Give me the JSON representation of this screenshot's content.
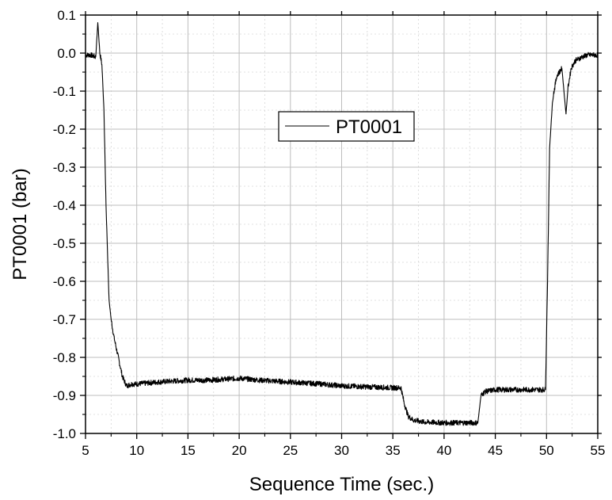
{
  "chart_data": {
    "type": "line",
    "xlabel": "Sequence Time (sec.)",
    "ylabel": "PT0001 (bar)",
    "xlim": [
      5,
      55
    ],
    "ylim": [
      -1.0,
      0.1
    ],
    "xticks": [
      5,
      10,
      15,
      20,
      25,
      30,
      35,
      40,
      45,
      50,
      55
    ],
    "yticks": [
      0.1,
      0.0,
      -0.1,
      -0.2,
      -0.3,
      -0.4,
      -0.5,
      -0.6,
      -0.7,
      -0.8,
      -0.9,
      -1.0
    ],
    "xtick_labels": [
      "5",
      "10",
      "15",
      "20",
      "25",
      "30",
      "35",
      "40",
      "45",
      "50",
      "55"
    ],
    "ytick_labels": [
      "0.1",
      "0.0",
      "-0.1",
      "-0.2",
      "-0.3",
      "-0.4",
      "-0.5",
      "-0.6",
      "-0.7",
      "-0.8",
      "-0.9",
      "-1.0"
    ],
    "grid": true,
    "legend_position": "top-center",
    "line_color": "#000000",
    "series": [
      {
        "name": "PT0001",
        "x": [
          5.0,
          5.5,
          6.0,
          6.2,
          6.4,
          6.6,
          6.8,
          7.0,
          7.3,
          7.5,
          7.8,
          8.2,
          8.6,
          9.0,
          9.5,
          10,
          12,
          15,
          17,
          20,
          22,
          25,
          28,
          30,
          33,
          35,
          35.8,
          36.1,
          36.5,
          37,
          38,
          40,
          42,
          43.3,
          43.6,
          44,
          45,
          47,
          49,
          49.9,
          50.1,
          50.3,
          50.6,
          51,
          51.5,
          51.9,
          52.1,
          52.4,
          52.8,
          53.5,
          54,
          55
        ],
        "y": [
          -0.005,
          -0.005,
          -0.01,
          0.08,
          0.0,
          -0.03,
          -0.15,
          -0.4,
          -0.65,
          -0.7,
          -0.75,
          -0.8,
          -0.85,
          -0.875,
          -0.87,
          -0.87,
          -0.865,
          -0.86,
          -0.86,
          -0.855,
          -0.86,
          -0.865,
          -0.87,
          -0.875,
          -0.878,
          -0.88,
          -0.88,
          -0.92,
          -0.955,
          -0.965,
          -0.97,
          -0.972,
          -0.972,
          -0.972,
          -0.9,
          -0.89,
          -0.885,
          -0.885,
          -0.885,
          -0.885,
          -0.6,
          -0.25,
          -0.12,
          -0.06,
          -0.04,
          -0.16,
          -0.09,
          -0.04,
          -0.02,
          -0.01,
          -0.005,
          -0.005
        ]
      }
    ]
  }
}
